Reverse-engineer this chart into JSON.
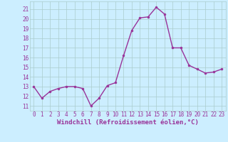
{
  "x": [
    0,
    1,
    2,
    3,
    4,
    5,
    6,
    7,
    8,
    9,
    10,
    11,
    12,
    13,
    14,
    15,
    16,
    17,
    18,
    19,
    20,
    21,
    22,
    23
  ],
  "y": [
    13.0,
    11.8,
    12.5,
    12.8,
    13.0,
    13.0,
    12.8,
    11.0,
    11.8,
    13.1,
    13.4,
    16.2,
    18.8,
    20.1,
    20.2,
    21.2,
    20.5,
    17.0,
    17.0,
    15.2,
    14.8,
    14.4,
    14.5,
    14.8
  ],
  "line_color": "#993399",
  "marker": "o",
  "marker_size": 2.0,
  "line_width": 1.0,
  "xlim": [
    -0.5,
    23.5
  ],
  "ylim": [
    10.5,
    21.8
  ],
  "yticks": [
    11,
    12,
    13,
    14,
    15,
    16,
    17,
    18,
    19,
    20,
    21
  ],
  "xticks": [
    0,
    1,
    2,
    3,
    4,
    5,
    6,
    7,
    8,
    9,
    10,
    11,
    12,
    13,
    14,
    15,
    16,
    17,
    18,
    19,
    20,
    21,
    22,
    23
  ],
  "xlabel": "Windchill (Refroidissement éolien,°C)",
  "background_color": "#cceeff",
  "grid_color": "#aacccc",
  "label_color": "#993399",
  "tick_fontsize": 5.5,
  "xlabel_fontsize": 6.5
}
